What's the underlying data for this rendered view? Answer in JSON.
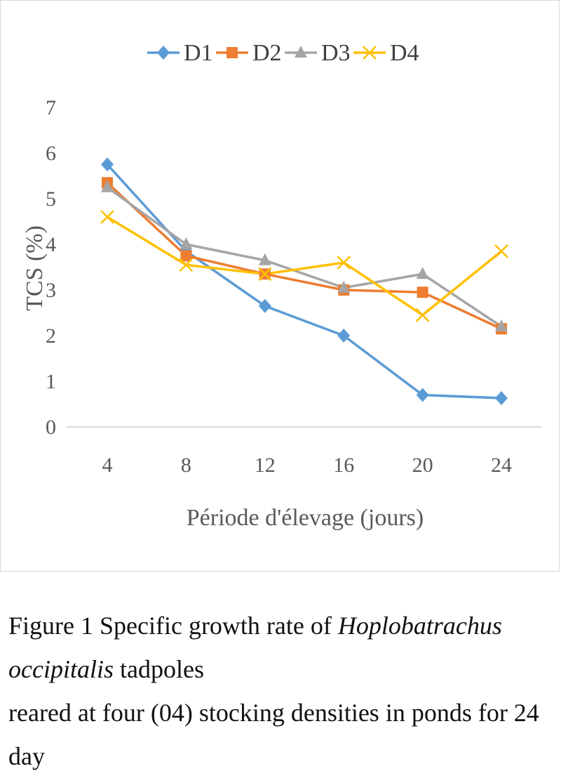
{
  "chart_data": {
    "type": "line",
    "x": [
      4,
      8,
      12,
      16,
      20,
      24
    ],
    "categories": [
      "4",
      "8",
      "12",
      "16",
      "20",
      "24"
    ],
    "ylabel": "TCS (%)",
    "xlabel": "Période d'élevage (jours)",
    "ylim": [
      0,
      7
    ],
    "yticks": [
      "0",
      "1",
      "2",
      "3",
      "4",
      "5",
      "6",
      "7"
    ],
    "grid": false,
    "legend_position": "top",
    "series": [
      {
        "name": "D1",
        "marker": "diamond",
        "color": "#5b9bd5",
        "values": [
          5.75,
          3.85,
          2.65,
          2.0,
          0.7,
          0.63
        ]
      },
      {
        "name": "D2",
        "marker": "square",
        "color": "#ed7d31",
        "values": [
          5.35,
          3.75,
          3.35,
          3.0,
          2.95,
          2.15
        ]
      },
      {
        "name": "D3",
        "marker": "triangle",
        "color": "#a5a5a5",
        "values": [
          5.25,
          4.0,
          3.65,
          3.05,
          3.35,
          2.2
        ]
      },
      {
        "name": "D4",
        "marker": "x",
        "color": "#ffc000",
        "values": [
          4.6,
          3.55,
          3.35,
          3.6,
          2.45,
          3.85
        ]
      }
    ]
  },
  "caption": {
    "line1_prefix": "Figure 1 Specific growth rate of ",
    "line1_italic": "Hoplobatrachus occipitalis",
    "line1_suffix": " tadpoles",
    "line2": "reared at four (04) stocking densities in ponds for 24 day"
  }
}
